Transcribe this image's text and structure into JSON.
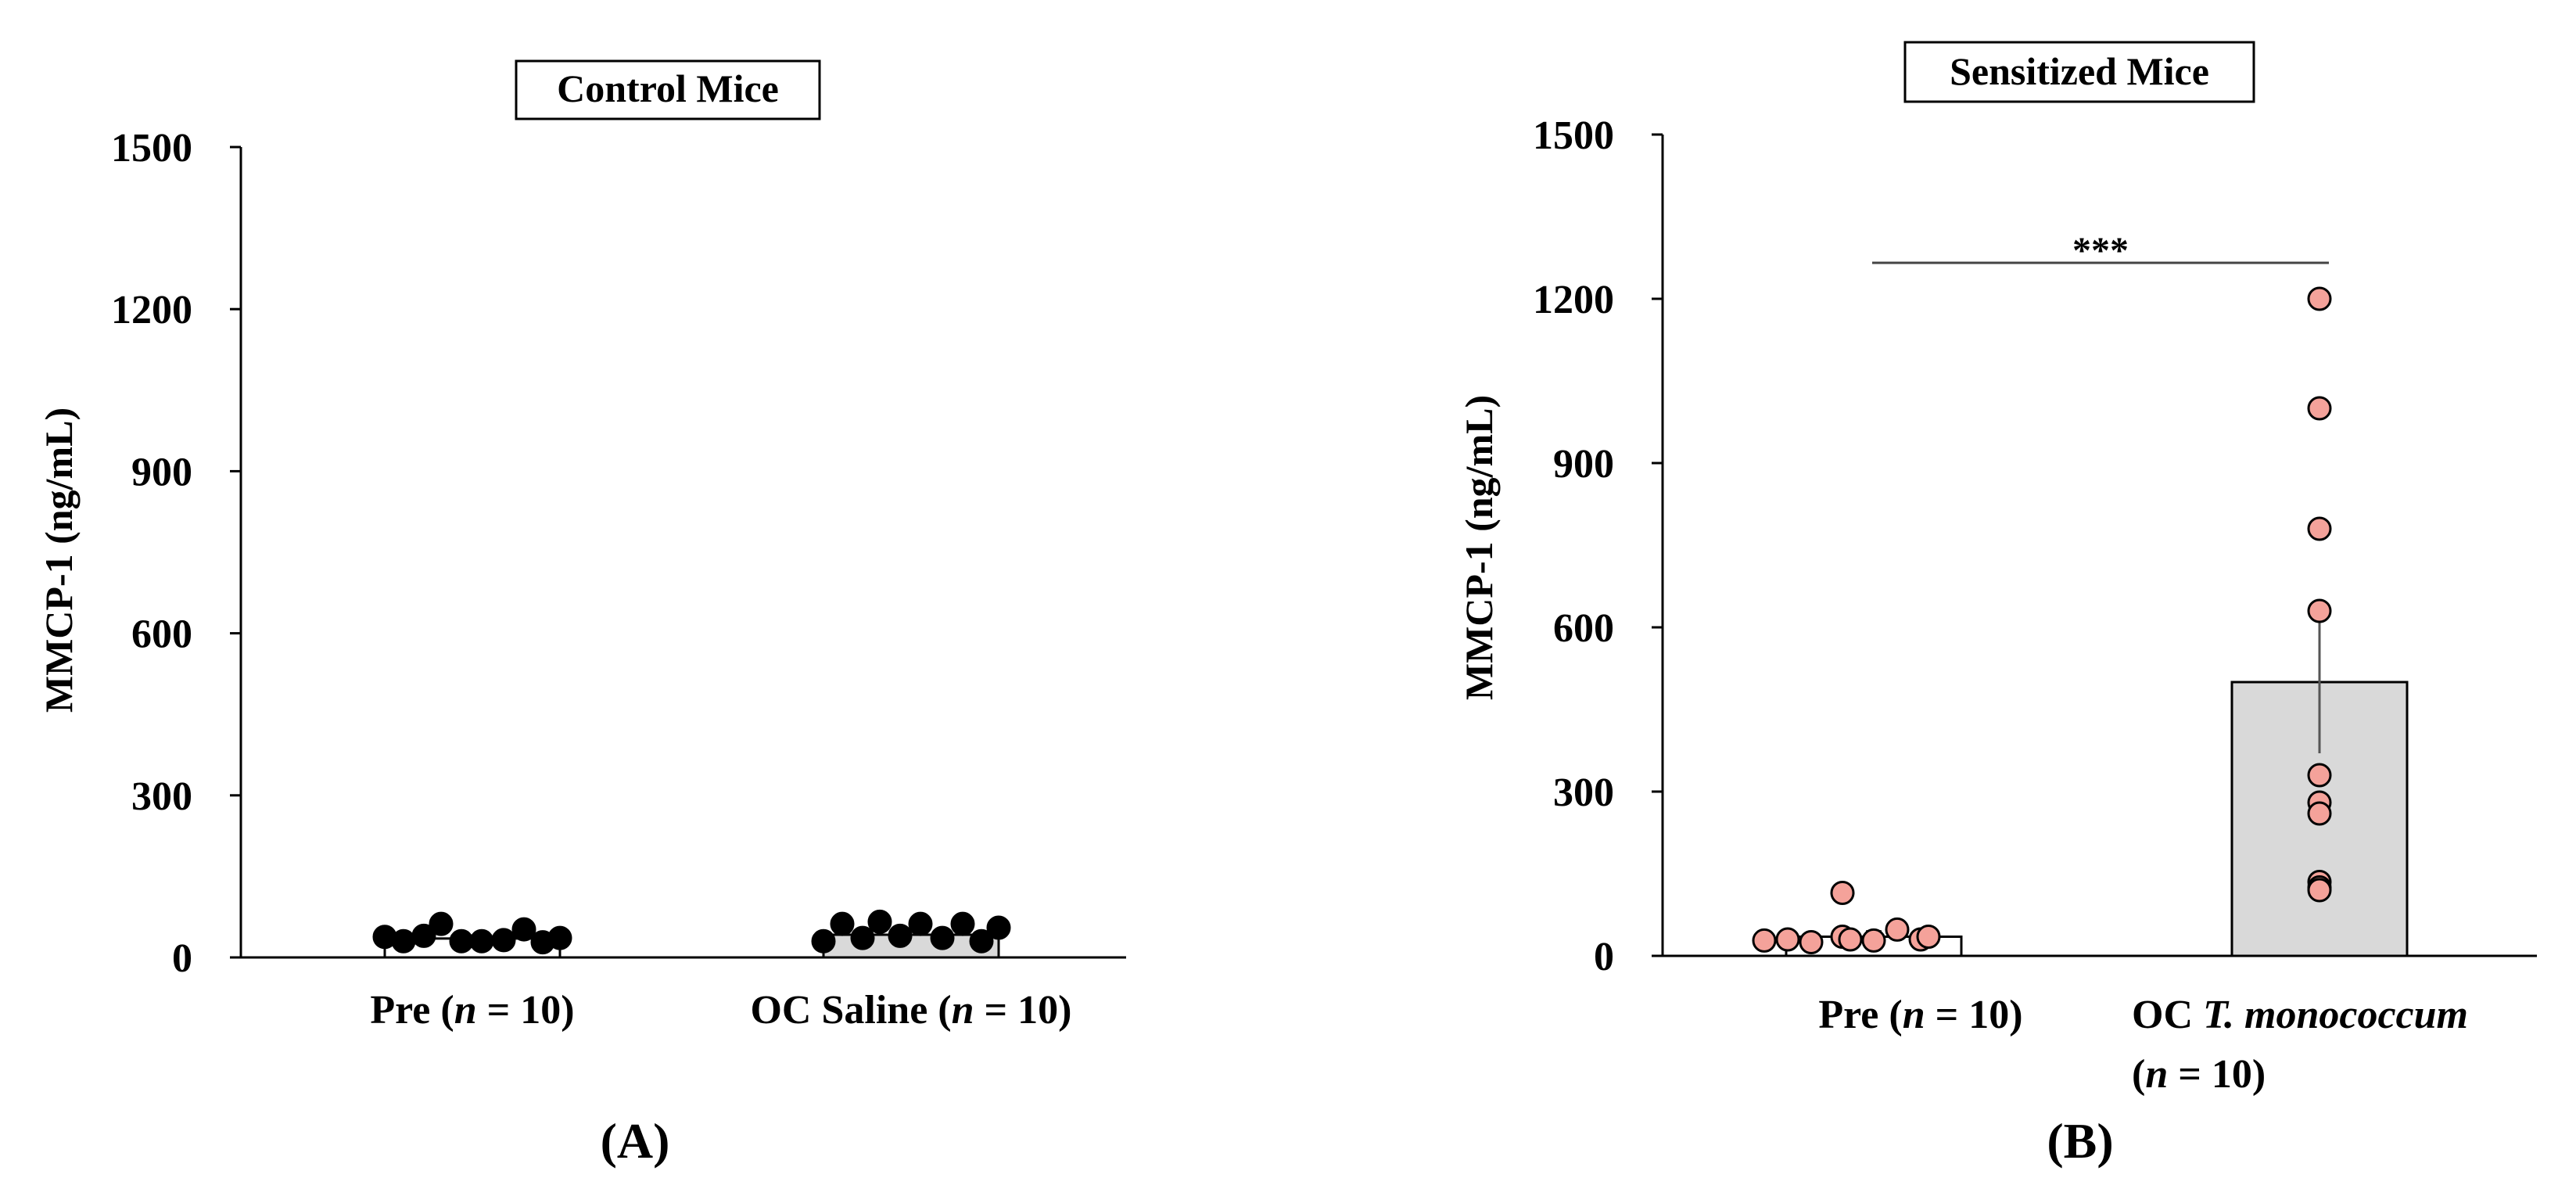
{
  "panels": [
    {
      "id": "A",
      "title": "Control Mice",
      "caption": "(A)",
      "ylabel": "MMCP-1 (ng/mL)",
      "yticks": [
        "0",
        "300",
        "600",
        "900",
        "1200",
        "1500"
      ],
      "groups": [
        {
          "label": "Pre (",
          "n_italic": "n",
          "label_end": " = 10)"
        },
        {
          "label": "OC Saline (",
          "n_italic": "n",
          "label_end": " = 10)"
        }
      ],
      "significance": ""
    },
    {
      "id": "B",
      "title": "Sensitized Mice",
      "caption": "(B)",
      "ylabel": "MMCP-1 (ng/mL)",
      "yticks": [
        "0",
        "300",
        "600",
        "900",
        "1200",
        "1500"
      ],
      "groups": [
        {
          "label": "Pre (",
          "n_italic": "n",
          "label_end": " = 10)"
        },
        {
          "label_line1_plain": "OC ",
          "label_line1_italic": "T. monococcum",
          "label_line2": "(",
          "n_italic": "n",
          "label_end": " = 10)"
        }
      ],
      "significance": "***"
    }
  ],
  "chart_data": [
    {
      "type": "bar",
      "title": "Control Mice",
      "ylabel": "MMCP-1 (ng/mL)",
      "xlabel": "",
      "ylim": [
        0,
        1500
      ],
      "categories": [
        "Pre (n = 10)",
        "OC Saline (n = 10)"
      ],
      "values": [
        35,
        42
      ],
      "error": [
        5,
        5
      ],
      "bar_colors": [
        "#ffffff",
        "#d9d9d9"
      ],
      "point_color": "#000000",
      "points": [
        [
          38,
          30,
          40,
          62,
          30,
          30,
          32,
          52,
          28,
          36
        ],
        [
          30,
          62,
          36,
          66,
          40,
          62,
          36,
          62,
          30,
          55
        ]
      ]
    },
    {
      "type": "bar",
      "title": "Sensitized Mice",
      "ylabel": "MMCP-1 (ng/mL)",
      "xlabel": "",
      "ylim": [
        0,
        1500
      ],
      "categories": [
        "Pre (n = 10)",
        "OC T. monococcum (n = 10)"
      ],
      "values": [
        35,
        500
      ],
      "error": [
        10,
        130
      ],
      "bar_colors": [
        "#ffffff",
        "#d9d9d9"
      ],
      "point_color": "#f4a29a",
      "significance": {
        "label": "***",
        "between": [
          0,
          1
        ]
      },
      "points": [
        [
          28,
          30,
          25,
          35,
          115,
          30,
          28,
          48,
          30,
          35
        ],
        [
          1200,
          1000,
          780,
          630,
          330,
          280,
          260,
          135,
          125,
          120
        ]
      ]
    }
  ]
}
